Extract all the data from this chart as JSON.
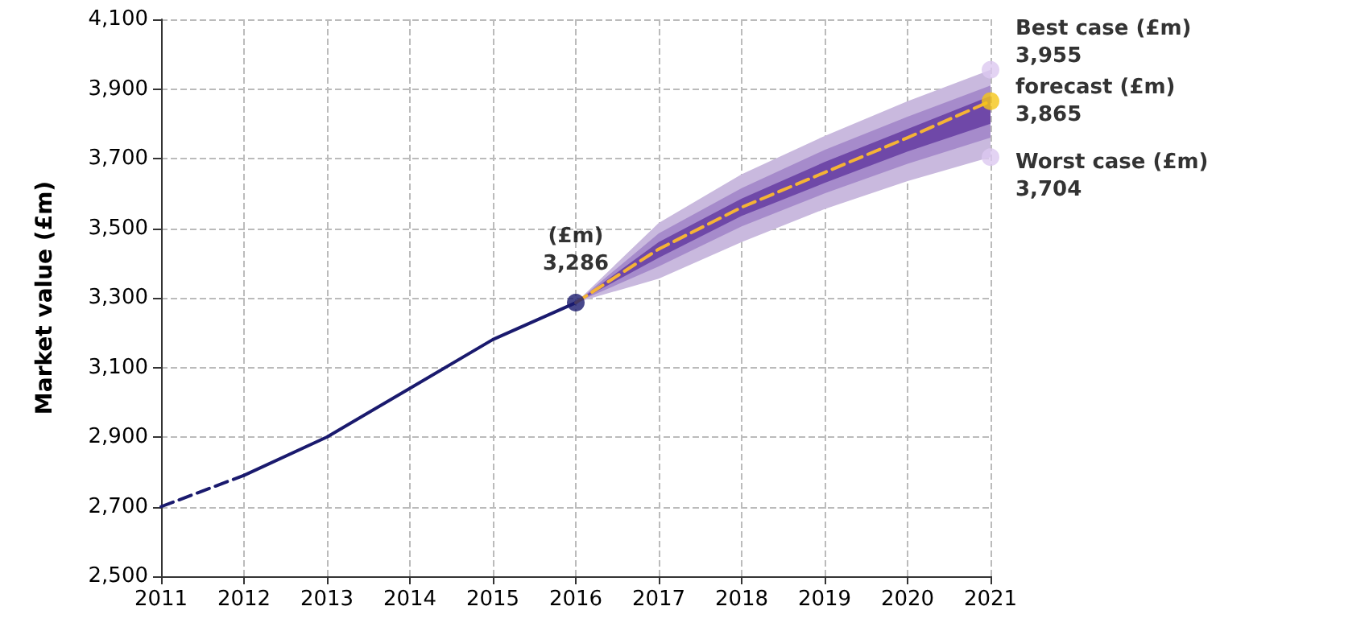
{
  "chart_data": {
    "type": "line",
    "ylabel": "Market value (£m)",
    "xlim": [
      2011,
      2021
    ],
    "xticks": [
      2011,
      2012,
      2013,
      2014,
      2015,
      2016,
      2017,
      2018,
      2019,
      2020,
      2021
    ],
    "ylim": [
      2500,
      4100
    ],
    "yticks": [
      {
        "value": 2500,
        "label": "2,500"
      },
      {
        "value": 2700,
        "label": "2,700"
      },
      {
        "value": 2900,
        "label": "2,900"
      },
      {
        "value": 3100,
        "label": "3,100"
      },
      {
        "value": 3300,
        "label": "3,300"
      },
      {
        "value": 3500,
        "label": "3,500"
      },
      {
        "value": 3700,
        "label": "3,700"
      },
      {
        "value": 3900,
        "label": "3,900"
      },
      {
        "value": 4100,
        "label": "4,100"
      }
    ],
    "grid": true,
    "marker": "none",
    "series": [
      {
        "color": "#c9b9de",
        "x": [
          2016,
          2017,
          2018,
          2019,
          2020,
          2021
        ],
        "values": [
          null,
          null,
          null,
          null,
          null,
          null
        ],
        "lower": [
          3286,
          3355,
          3460,
          3555,
          3635,
          3704
        ],
        "upper": [
          3286,
          3515,
          3655,
          3765,
          3865,
          3955
        ]
      },
      {
        "color": "#a68bcb",
        "x": [
          2016,
          2017,
          2018,
          2019,
          2020,
          2021
        ],
        "values": [
          null,
          null,
          null,
          null,
          null,
          null
        ],
        "lower": [
          3286,
          3390,
          3505,
          3600,
          3685,
          3760
        ],
        "upper": [
          3286,
          3485,
          3615,
          3725,
          3820,
          3910
        ]
      },
      {
        "color": "#6f48a8",
        "x": [
          2016,
          2017,
          2018,
          2019,
          2020,
          2021
        ],
        "values": [
          null,
          null,
          null,
          null,
          null,
          null
        ],
        "lower": [
          3286,
          3415,
          3535,
          3630,
          3720,
          3800
        ],
        "upper": [
          3286,
          3460,
          3585,
          3690,
          3785,
          3880
        ]
      },
      {
        "color": "#1a1a6e",
        "line_style": "dashed",
        "x": [
          2011,
          2012
        ],
        "values": [
          2700,
          2790
        ]
      },
      {
        "color": "#1a1a6e",
        "line_style": "solid",
        "x": [
          2012,
          2013,
          2014,
          2015,
          2016
        ],
        "values": [
          2790,
          2900,
          3040,
          3180,
          3286
        ]
      },
      {
        "color": "#f5b335",
        "line_style": "dashed",
        "x": [
          2016,
          2017,
          2018,
          2019,
          2020,
          2021
        ],
        "values": [
          3286,
          3440,
          3560,
          3660,
          3760,
          3865
        ]
      },
      {
        "type": "scatter",
        "name": "(£m)",
        "color": "#1a1a6e",
        "marker": "circle",
        "x": [
          2016
        ],
        "values": [
          3286
        ],
        "value_labels": [
          "3,286"
        ]
      },
      {
        "type": "scatter",
        "name": "Best case (£m)",
        "color": "#dcc8f0",
        "marker": "circle",
        "x": [
          2021
        ],
        "values": [
          3955
        ],
        "value_labels": [
          "3,955"
        ]
      },
      {
        "type": "scatter",
        "name": "forecast (£m)",
        "color": "#f5c518",
        "marker": "circle",
        "x": [
          2021
        ],
        "values": [
          3865
        ],
        "value_labels": [
          "3,865"
        ]
      },
      {
        "type": "scatter",
        "name": "Worst case (£m)",
        "color": "#dcc8f0",
        "marker": "circle",
        "x": [
          2021
        ],
        "values": [
          3704
        ],
        "value_labels": [
          "3,704"
        ]
      }
    ]
  }
}
